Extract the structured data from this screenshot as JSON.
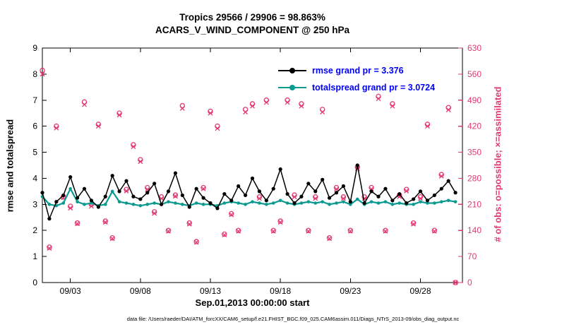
{
  "title": {
    "line1": "Tropics 29566 / 29906 = 98.863%",
    "line2": "ACARS_V_WIND_COMPONENT @ 250 hPa"
  },
  "legend": {
    "text_color": "#0000ff",
    "items": [
      {
        "label": "rmse grand pr = 3.376",
        "color": "#000000"
      },
      {
        "label": "totalspread grand pr = 3.0724",
        "color": "#0a9a8f"
      }
    ]
  },
  "caption": "data file: /Users/raeder/DAI/ATM_forcXX/CAM6_setup/f.e21.FHIST_BGC.f09_025.CAM6assim.011/Diags_NTrS_2013-09/obs_diag_output.nc",
  "chart_data": {
    "type": "line",
    "title": "Tropics 29566 / 29906 = 98.863%",
    "subtitle": "ACARS_V_WIND_COMPONENT @ 250 hPa",
    "x_axis": {
      "label": "Sep.01,2013 00:00:00 start",
      "range": [
        1,
        31
      ],
      "ticks": [
        3,
        8,
        13,
        18,
        23,
        28
      ],
      "tick_labels": [
        "09/03",
        "09/08",
        "09/13",
        "09/18",
        "09/23",
        "09/28"
      ]
    },
    "left_axis": {
      "label": "rmse and totalspread",
      "range": [
        0,
        9
      ],
      "ticks": [
        0,
        1,
        2,
        3,
        4,
        5,
        6,
        7,
        8,
        9
      ]
    },
    "right_axis": {
      "label": "# of obs: o=possible; ×=assimilated",
      "range": [
        0,
        630
      ],
      "ticks": [
        0,
        70,
        140,
        210,
        280,
        350,
        420,
        490,
        560,
        630
      ],
      "color": "#e23a6e"
    },
    "x": [
      1,
      1.5,
      2,
      2.5,
      3,
      3.5,
      4,
      4.5,
      5,
      5.5,
      6,
      6.5,
      7,
      7.5,
      8,
      8.5,
      9,
      9.5,
      10,
      10.5,
      11,
      11.5,
      12,
      12.5,
      13,
      13.5,
      14,
      14.5,
      15,
      15.5,
      16,
      16.5,
      17,
      17.5,
      18,
      18.5,
      19,
      19.5,
      20,
      20.5,
      21,
      21.5,
      22,
      22.5,
      23,
      23.5,
      24,
      24.5,
      25,
      25.5,
      26,
      26.5,
      27,
      27.5,
      28,
      28.5,
      29,
      29.5,
      30,
      30.5
    ],
    "series": [
      {
        "name": "rmse",
        "grand_mean": 3.376,
        "color": "#000000",
        "values": [
          3.45,
          2.45,
          3.1,
          3.35,
          4.05,
          3.25,
          3.6,
          3.15,
          2.9,
          3.3,
          4.1,
          3.5,
          3.9,
          3.3,
          3.2,
          3.45,
          3.8,
          3.0,
          3.5,
          4.2,
          3.35,
          2.9,
          3.6,
          3.25,
          3.05,
          2.85,
          3.4,
          3.15,
          3.7,
          3.35,
          4.0,
          3.5,
          3.15,
          3.6,
          4.35,
          3.4,
          3.05,
          3.3,
          3.8,
          3.5,
          3.95,
          3.25,
          3.45,
          3.7,
          3.1,
          4.5,
          3.05,
          3.5,
          3.3,
          3.6,
          3.15,
          3.4,
          3.05,
          3.2,
          3.5,
          3.15,
          3.35,
          3.6,
          3.9,
          3.45
        ]
      },
      {
        "name": "totalspread",
        "grand_mean": 3.0724,
        "color": "#0a9a8f",
        "values": [
          3.3,
          3.0,
          2.95,
          3.05,
          3.6,
          3.1,
          3.0,
          3.05,
          2.95,
          3.0,
          3.5,
          3.1,
          3.05,
          3.0,
          2.95,
          3.0,
          3.05,
          3.0,
          3.1,
          3.05,
          3.0,
          2.95,
          3.05,
          3.0,
          3.0,
          2.95,
          3.05,
          3.1,
          3.05,
          3.0,
          3.1,
          3.05,
          3.0,
          3.05,
          3.15,
          3.05,
          3.0,
          3.05,
          3.1,
          3.05,
          3.1,
          3.0,
          3.05,
          3.1,
          3.0,
          3.2,
          3.0,
          3.1,
          3.05,
          3.1,
          3.0,
          3.05,
          3.0,
          3.0,
          3.1,
          3.05,
          3.05,
          3.1,
          3.15,
          3.1
        ]
      }
    ],
    "obs_series": {
      "color": "#e23a6e",
      "possible": {
        "marker": "o",
        "values": [
          570,
          95,
          420,
          230,
          205,
          160,
          485,
          210,
          425,
          165,
          120,
          455,
          250,
          370,
          330,
          255,
          190,
          230,
          140,
          235,
          475,
          160,
          110,
          255,
          460,
          420,
          130,
          185,
          140,
          465,
          480,
          230,
          490,
          140,
          165,
          490,
          235,
          480,
          140,
          230,
          465,
          120,
          255,
          230,
          140,
          310,
          230,
          255,
          500,
          140,
          480,
          235,
          250,
          160,
          230,
          425,
          140,
          290,
          470,
          0
        ]
      },
      "assimilated": {
        "marker": "×",
        "values": [
          560,
          92,
          415,
          228,
          200,
          158,
          478,
          205,
          420,
          162,
          118,
          450,
          246,
          365,
          325,
          250,
          186,
          226,
          138,
          232,
          468,
          157,
          108,
          252,
          455,
          414,
          128,
          182,
          138,
          458,
          474,
          226,
          484,
          138,
          162,
          484,
          230,
          474,
          138,
          226,
          458,
          118,
          251,
          226,
          138,
          306,
          226,
          251,
          494,
          138,
          474,
          231,
          246,
          157,
          226,
          420,
          138,
          286,
          464,
          0
        ]
      }
    }
  }
}
